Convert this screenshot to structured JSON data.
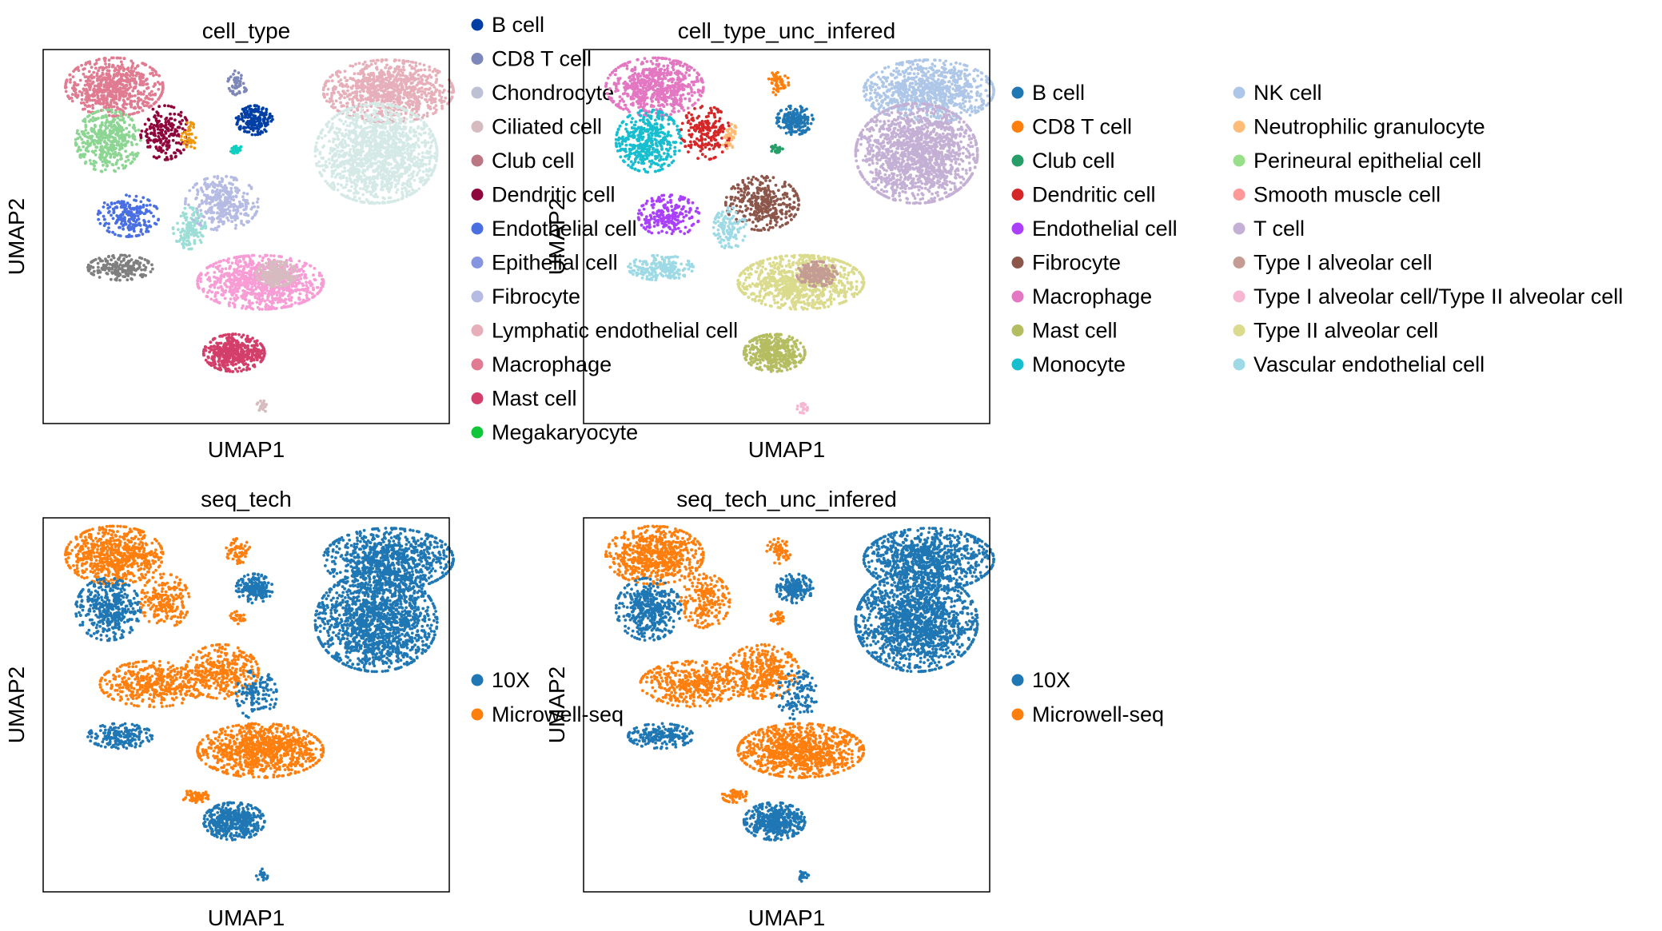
{
  "chart_data": [
    {
      "type": "scatter",
      "title": "cell_type",
      "xlabel": "UMAP1",
      "ylabel": "UMAP2",
      "grid": false,
      "legend_position": "right",
      "legend_columns": 1,
      "legend": [
        {
          "name": "B cell",
          "color": "#023fa5"
        },
        {
          "name": "CD8 T cell",
          "color": "#7d87b9"
        },
        {
          "name": "Chondrocyte",
          "color": "#bec1d4"
        },
        {
          "name": "Ciliated cell",
          "color": "#d6bcc0"
        },
        {
          "name": "Club cell",
          "color": "#bb7784"
        },
        {
          "name": "Dendritic cell",
          "color": "#8e063b"
        },
        {
          "name": "Endothelial cell",
          "color": "#4a6fe3"
        },
        {
          "name": "Epithelial cell",
          "color": "#8595e1"
        },
        {
          "name": "Fibrocyte",
          "color": "#b5bbe3"
        },
        {
          "name": "Lymphatic endothelial cell",
          "color": "#e6afb9"
        },
        {
          "name": "Macrophage",
          "color": "#e07b91"
        },
        {
          "name": "Mast cell",
          "color": "#d33f6a"
        },
        {
          "name": "Megakaryocyte",
          "color": "#11c638"
        }
      ],
      "clusters": [
        {
          "color": "#e07b91",
          "cx": -6.5,
          "cy": 8.2,
          "rx": 2.4,
          "ry": 1.4,
          "n": 650
        },
        {
          "color": "#8dd593",
          "cx": -6.8,
          "cy": 5.6,
          "rx": 1.6,
          "ry": 1.5,
          "n": 420
        },
        {
          "color": "#8e063b",
          "cx": -4.0,
          "cy": 6.0,
          "rx": 1.2,
          "ry": 1.3,
          "n": 200
        },
        {
          "color": "#ef9708",
          "cx": -2.8,
          "cy": 5.8,
          "rx": 0.4,
          "ry": 0.7,
          "n": 40
        },
        {
          "color": "#7d87b9",
          "cx": -0.4,
          "cy": 8.4,
          "rx": 0.5,
          "ry": 0.6,
          "n": 50
        },
        {
          "color": "#023fa5",
          "cx": 0.4,
          "cy": 6.6,
          "rx": 0.9,
          "ry": 0.7,
          "n": 180
        },
        {
          "color": "#0fcfc0",
          "cx": -0.5,
          "cy": 5.2,
          "rx": 0.3,
          "ry": 0.2,
          "n": 30
        },
        {
          "color": "#e6afb9",
          "cx": 7.0,
          "cy": 8.0,
          "rx": 3.2,
          "ry": 1.5,
          "n": 900
        },
        {
          "color": "#d5eae7",
          "cx": 6.4,
          "cy": 5.0,
          "rx": 3.0,
          "ry": 2.4,
          "n": 1500
        },
        {
          "color": "#4a6fe3",
          "cx": -5.8,
          "cy": 2.0,
          "rx": 1.5,
          "ry": 1.0,
          "n": 220
        },
        {
          "color": "#7f7f7f",
          "cx": -6.2,
          "cy": -0.5,
          "rx": 1.6,
          "ry": 0.6,
          "n": 200
        },
        {
          "color": "#b5bbe3",
          "cx": -1.2,
          "cy": 2.6,
          "rx": 1.8,
          "ry": 1.3,
          "n": 350
        },
        {
          "color": "#9cded6",
          "cx": -2.8,
          "cy": 1.4,
          "rx": 0.8,
          "ry": 1.0,
          "n": 120
        },
        {
          "color": "#f79cd4",
          "cx": 0.7,
          "cy": -1.2,
          "rx": 3.1,
          "ry": 1.3,
          "n": 900
        },
        {
          "color": "#d6bcc0",
          "cx": 1.5,
          "cy": -0.8,
          "rx": 1.0,
          "ry": 0.6,
          "n": 200
        },
        {
          "color": "#d33f6a",
          "cx": -0.6,
          "cy": -4.6,
          "rx": 1.5,
          "ry": 0.9,
          "n": 450
        },
        {
          "color": "#d6bcc0",
          "cx": 0.8,
          "cy": -7.2,
          "rx": 0.3,
          "ry": 0.3,
          "n": 20
        }
      ],
      "xlim": [
        -10,
        10
      ],
      "ylim": [
        -8,
        10
      ]
    },
    {
      "type": "scatter",
      "title": "cell_type_unc_infered",
      "xlabel": "UMAP1",
      "ylabel": "UMAP2",
      "grid": false,
      "legend_position": "right",
      "legend_columns": 2,
      "legend": [
        {
          "name": "B cell",
          "color": "#1f77b4"
        },
        {
          "name": "CD8 T cell",
          "color": "#ff7f0e"
        },
        {
          "name": "Club cell",
          "color": "#279e68"
        },
        {
          "name": "Dendritic cell",
          "color": "#d62728"
        },
        {
          "name": "Endothelial cell",
          "color": "#aa40fc"
        },
        {
          "name": "Fibrocyte",
          "color": "#8c564b"
        },
        {
          "name": "Macrophage",
          "color": "#e377c2"
        },
        {
          "name": "Mast cell",
          "color": "#b5bd61"
        },
        {
          "name": "Monocyte",
          "color": "#17becf"
        },
        {
          "name": "NK cell",
          "color": "#aec7e8"
        },
        {
          "name": "Neutrophilic granulocyte",
          "color": "#ffbb78"
        },
        {
          "name": "Perineural epithelial cell",
          "color": "#98df8a"
        },
        {
          "name": "Smooth muscle cell",
          "color": "#ff9896"
        },
        {
          "name": "T cell",
          "color": "#c5b0d5"
        },
        {
          "name": "Type I alveolar cell",
          "color": "#c49c94"
        },
        {
          "name": "Type I alveolar cell/Type II alveolar cell",
          "color": "#f7b6d2"
        },
        {
          "name": "Type II alveolar cell",
          "color": "#dbdb8d"
        },
        {
          "name": "Vascular endothelial cell",
          "color": "#9edae5"
        }
      ],
      "clusters": [
        {
          "color": "#e377c2",
          "cx": -6.5,
          "cy": 8.2,
          "rx": 2.4,
          "ry": 1.4,
          "n": 650
        },
        {
          "color": "#17becf",
          "cx": -6.8,
          "cy": 5.6,
          "rx": 1.6,
          "ry": 1.5,
          "n": 420
        },
        {
          "color": "#d62728",
          "cx": -4.0,
          "cy": 6.0,
          "rx": 1.2,
          "ry": 1.3,
          "n": 200
        },
        {
          "color": "#ffbb78",
          "cx": -2.8,
          "cy": 5.8,
          "rx": 0.4,
          "ry": 0.7,
          "n": 40
        },
        {
          "color": "#ff7f0e",
          "cx": -0.4,
          "cy": 8.4,
          "rx": 0.5,
          "ry": 0.6,
          "n": 50
        },
        {
          "color": "#1f77b4",
          "cx": 0.4,
          "cy": 6.6,
          "rx": 0.9,
          "ry": 0.7,
          "n": 180
        },
        {
          "color": "#279e68",
          "cx": -0.5,
          "cy": 5.2,
          "rx": 0.3,
          "ry": 0.2,
          "n": 30
        },
        {
          "color": "#aec7e8",
          "cx": 7.0,
          "cy": 8.0,
          "rx": 3.2,
          "ry": 1.5,
          "n": 900
        },
        {
          "color": "#c5b0d5",
          "cx": 6.4,
          "cy": 5.0,
          "rx": 3.0,
          "ry": 2.4,
          "n": 1500
        },
        {
          "color": "#aa40fc",
          "cx": -5.8,
          "cy": 2.0,
          "rx": 1.5,
          "ry": 1.0,
          "n": 220
        },
        {
          "color": "#9edae5",
          "cx": -6.2,
          "cy": -0.5,
          "rx": 1.6,
          "ry": 0.6,
          "n": 200
        },
        {
          "color": "#8c564b",
          "cx": -1.2,
          "cy": 2.6,
          "rx": 1.8,
          "ry": 1.3,
          "n": 350
        },
        {
          "color": "#9edae5",
          "cx": -2.8,
          "cy": 1.4,
          "rx": 0.8,
          "ry": 1.0,
          "n": 120
        },
        {
          "color": "#dbdb8d",
          "cx": 0.7,
          "cy": -1.2,
          "rx": 3.1,
          "ry": 1.3,
          "n": 900
        },
        {
          "color": "#c49c94",
          "cx": 1.5,
          "cy": -0.8,
          "rx": 1.0,
          "ry": 0.6,
          "n": 200
        },
        {
          "color": "#b5bd61",
          "cx": -0.6,
          "cy": -4.6,
          "rx": 1.5,
          "ry": 0.9,
          "n": 450
        },
        {
          "color": "#f7b6d2",
          "cx": 0.8,
          "cy": -7.2,
          "rx": 0.3,
          "ry": 0.3,
          "n": 20
        }
      ],
      "xlim": [
        -10,
        10
      ],
      "ylim": [
        -8,
        10
      ]
    },
    {
      "type": "scatter",
      "title": "seq_tech",
      "xlabel": "UMAP1",
      "ylabel": "UMAP2",
      "grid": false,
      "legend_position": "right",
      "legend_columns": 1,
      "legend": [
        {
          "name": "10X",
          "color": "#1f77b4"
        },
        {
          "name": "Microwell-seq",
          "color": "#ff7f0e"
        }
      ],
      "clusters": [
        {
          "color": "#ff7f0e",
          "cx": -6.5,
          "cy": 8.2,
          "rx": 2.4,
          "ry": 1.4,
          "n": 650
        },
        {
          "color": "#1f77b4",
          "cx": -6.8,
          "cy": 5.6,
          "rx": 1.6,
          "ry": 1.5,
          "n": 420
        },
        {
          "color": "#ff7f0e",
          "cx": -4.0,
          "cy": 6.0,
          "rx": 1.2,
          "ry": 1.3,
          "n": 200
        },
        {
          "color": "#ff7f0e",
          "cx": -0.4,
          "cy": 8.4,
          "rx": 0.6,
          "ry": 0.6,
          "n": 60
        },
        {
          "color": "#1f77b4",
          "cx": 0.4,
          "cy": 6.6,
          "rx": 0.9,
          "ry": 0.7,
          "n": 180
        },
        {
          "color": "#ff7f0e",
          "cx": -0.4,
          "cy": 5.2,
          "rx": 0.4,
          "ry": 0.3,
          "n": 30
        },
        {
          "color": "#1f77b4",
          "cx": 7.0,
          "cy": 8.0,
          "rx": 3.2,
          "ry": 1.5,
          "n": 900
        },
        {
          "color": "#1f77b4",
          "cx": 6.4,
          "cy": 5.0,
          "rx": 3.0,
          "ry": 2.4,
          "n": 1500
        },
        {
          "color": "#ff7f0e",
          "cx": -4.6,
          "cy": 2.0,
          "rx": 2.6,
          "ry": 1.1,
          "n": 420
        },
        {
          "color": "#1f77b4",
          "cx": -6.2,
          "cy": -0.5,
          "rx": 1.6,
          "ry": 0.6,
          "n": 200
        },
        {
          "color": "#ff7f0e",
          "cx": -1.2,
          "cy": 2.6,
          "rx": 1.8,
          "ry": 1.3,
          "n": 350
        },
        {
          "color": "#1f77b4",
          "cx": 0.5,
          "cy": 1.5,
          "rx": 1.0,
          "ry": 1.2,
          "n": 120
        },
        {
          "color": "#ff7f0e",
          "cx": 0.7,
          "cy": -1.2,
          "rx": 3.1,
          "ry": 1.3,
          "n": 900
        },
        {
          "color": "#ff7f0e",
          "cx": -2.5,
          "cy": -3.4,
          "rx": 0.7,
          "ry": 0.3,
          "n": 60
        },
        {
          "color": "#1f77b4",
          "cx": -0.6,
          "cy": -4.6,
          "rx": 1.5,
          "ry": 0.9,
          "n": 450
        },
        {
          "color": "#1f77b4",
          "cx": 0.8,
          "cy": -7.2,
          "rx": 0.3,
          "ry": 0.3,
          "n": 20
        }
      ],
      "xlim": [
        -10,
        10
      ],
      "ylim": [
        -8,
        10
      ]
    },
    {
      "type": "scatter",
      "title": "seq_tech_unc_infered",
      "xlabel": "UMAP1",
      "ylabel": "UMAP2",
      "grid": false,
      "legend_position": "right",
      "legend_columns": 1,
      "legend": [
        {
          "name": "10X",
          "color": "#1f77b4"
        },
        {
          "name": "Microwell-seq",
          "color": "#ff7f0e"
        }
      ],
      "clusters": [
        {
          "color": "#ff7f0e",
          "cx": -6.5,
          "cy": 8.2,
          "rx": 2.4,
          "ry": 1.4,
          "n": 650
        },
        {
          "color": "#1f77b4",
          "cx": -6.8,
          "cy": 5.6,
          "rx": 1.6,
          "ry": 1.5,
          "n": 420
        },
        {
          "color": "#ff7f0e",
          "cx": -4.0,
          "cy": 6.0,
          "rx": 1.2,
          "ry": 1.3,
          "n": 200
        },
        {
          "color": "#ff7f0e",
          "cx": -0.4,
          "cy": 8.4,
          "rx": 0.6,
          "ry": 0.6,
          "n": 60
        },
        {
          "color": "#1f77b4",
          "cx": 0.4,
          "cy": 6.6,
          "rx": 0.9,
          "ry": 0.7,
          "n": 180
        },
        {
          "color": "#ff7f0e",
          "cx": -0.4,
          "cy": 5.2,
          "rx": 0.4,
          "ry": 0.3,
          "n": 30
        },
        {
          "color": "#1f77b4",
          "cx": 7.0,
          "cy": 8.0,
          "rx": 3.2,
          "ry": 1.5,
          "n": 900
        },
        {
          "color": "#1f77b4",
          "cx": 6.4,
          "cy": 5.0,
          "rx": 3.0,
          "ry": 2.4,
          "n": 1500
        },
        {
          "color": "#ff7f0e",
          "cx": -4.6,
          "cy": 2.0,
          "rx": 2.6,
          "ry": 1.1,
          "n": 420
        },
        {
          "color": "#1f77b4",
          "cx": -6.2,
          "cy": -0.5,
          "rx": 1.6,
          "ry": 0.6,
          "n": 200
        },
        {
          "color": "#ff7f0e",
          "cx": -1.2,
          "cy": 2.6,
          "rx": 1.8,
          "ry": 1.3,
          "n": 350
        },
        {
          "color": "#1f77b4",
          "cx": 0.5,
          "cy": 1.5,
          "rx": 1.0,
          "ry": 1.2,
          "n": 120
        },
        {
          "color": "#ff7f0e",
          "cx": 0.7,
          "cy": -1.2,
          "rx": 3.1,
          "ry": 1.3,
          "n": 900
        },
        {
          "color": "#ff7f0e",
          "cx": -2.5,
          "cy": -3.4,
          "rx": 0.7,
          "ry": 0.3,
          "n": 60
        },
        {
          "color": "#1f77b4",
          "cx": -0.6,
          "cy": -4.6,
          "rx": 1.5,
          "ry": 0.9,
          "n": 450
        },
        {
          "color": "#1f77b4",
          "cx": 0.8,
          "cy": -7.2,
          "rx": 0.3,
          "ry": 0.3,
          "n": 20
        }
      ],
      "xlim": [
        -10,
        10
      ],
      "ylim": [
        -8,
        10
      ]
    }
  ]
}
